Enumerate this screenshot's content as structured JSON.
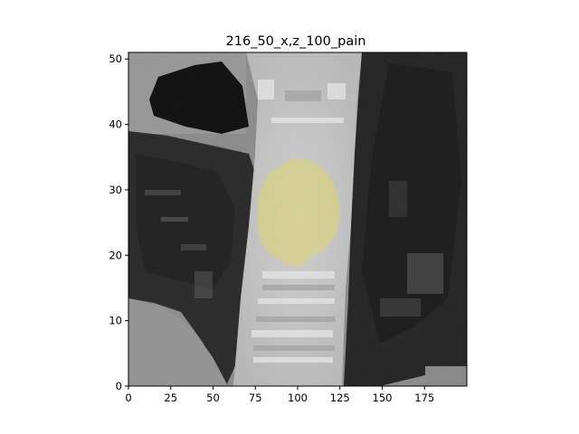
{
  "title": "216_50_x,z_100_pain",
  "x_axis": {
    "range": [
      0,
      200
    ],
    "ticks": [
      "0",
      "25",
      "50",
      "75",
      "100",
      "125",
      "150",
      "175"
    ]
  },
  "y_axis": {
    "range": [
      0,
      51
    ],
    "ticks": [
      "0",
      "10",
      "20",
      "30",
      "40",
      "50"
    ]
  },
  "image": {
    "description_colormap": "gray",
    "overlay_color": "#e8dc6a",
    "overlay_label_region": {
      "x_center": 100,
      "y_center": 26,
      "x_radius": 24,
      "y_radius": 8.5
    }
  }
}
